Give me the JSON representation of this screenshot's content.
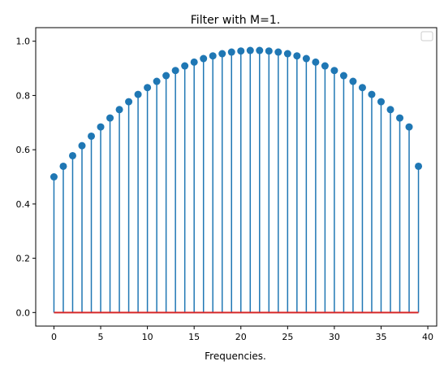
{
  "chart_data": {
    "type": "stem",
    "title": "Filter with M=1.",
    "xlabel": "Frequencies.",
    "ylabel": "",
    "x": [
      0,
      1,
      2,
      3,
      4,
      5,
      6,
      7,
      8,
      9,
      10,
      11,
      12,
      13,
      14,
      15,
      16,
      17,
      18,
      19,
      20,
      21,
      22,
      23,
      24,
      25,
      26,
      27,
      28,
      29,
      30,
      31,
      32,
      33,
      34,
      35,
      36,
      37,
      38,
      39
    ],
    "values": [
      0.5,
      0.539,
      0.578,
      0.615,
      0.65,
      0.684,
      0.717,
      0.748,
      0.777,
      0.804,
      0.829,
      0.852,
      0.873,
      0.892,
      0.909,
      0.923,
      0.936,
      0.946,
      0.954,
      0.96,
      0.964,
      0.966,
      0.966,
      0.964,
      0.96,
      0.954,
      0.946,
      0.936,
      0.923,
      0.909,
      0.892,
      0.873,
      0.852,
      0.829,
      0.804,
      0.777,
      0.748,
      0.717,
      0.684,
      0.539
    ],
    "xticks": [
      "0",
      "5",
      "10",
      "15",
      "20",
      "25",
      "30",
      "35",
      "40"
    ],
    "yticks": [
      "0.0",
      "0.2",
      "0.4",
      "0.6",
      "0.8",
      "1.0"
    ],
    "xlim": [
      -1.95,
      40.95
    ],
    "ylim": [
      -0.05,
      1.05
    ],
    "baseline": 0,
    "legend": "upper right, empty",
    "grid": false,
    "colors": {
      "stem": "#1f77b4",
      "baseline": "#d62728"
    }
  }
}
